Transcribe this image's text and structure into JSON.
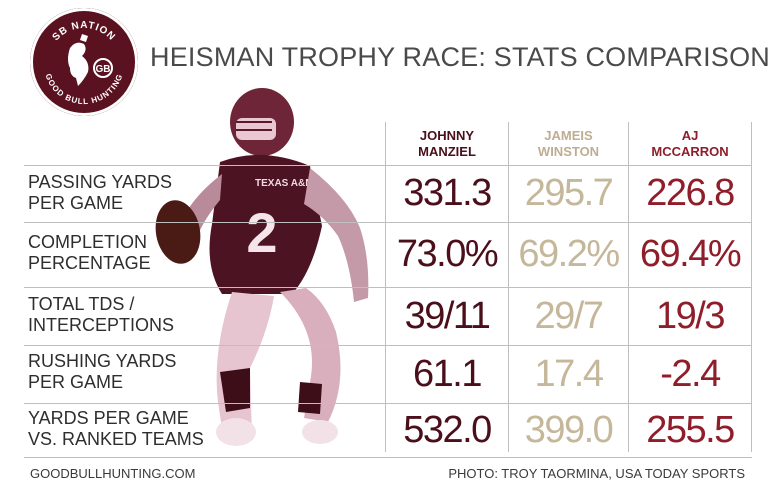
{
  "logo": {
    "top_text": "SB NATION",
    "bottom_text": "GOOD BULL HUNTING",
    "monogram": "GB"
  },
  "title": "HEISMAN TROPHY RACE: STATS COMPARISON",
  "players": [
    {
      "name_line1": "JOHNNY",
      "name_line2": "MANZIEL",
      "color": "#4a0f1a"
    },
    {
      "name_line1": "JAMEIS",
      "name_line2": "WINSTON",
      "color": "#c5b79a"
    },
    {
      "name_line1": "AJ",
      "name_line2": "MCCARRON",
      "color": "#8f1d2a"
    }
  ],
  "rows": [
    {
      "label_line1": "PASSING YARDS",
      "label_line2": "PER GAME",
      "values": [
        "331.3",
        "295.7",
        "226.8"
      ]
    },
    {
      "label_line1": "COMPLETION",
      "label_line2": "PERCENTAGE",
      "values": [
        "73.0%",
        "69.2%",
        "69.4%"
      ]
    },
    {
      "label_line1": "TOTAL TDS /",
      "label_line2": "INTERCEPTIONS",
      "values": [
        "39/11",
        "29/7",
        "19/3"
      ]
    },
    {
      "label_line1": "RUSHING YARDS",
      "label_line2": "PER GAME",
      "values": [
        "61.1",
        "17.4",
        "-2.4"
      ]
    },
    {
      "label_line1": "YARDS PER GAME",
      "label_line2": "VS. RANKED TEAMS",
      "values": [
        "532.0",
        "399.0",
        "255.5"
      ]
    }
  ],
  "player_jersey": {
    "wordmark": "TEXAS A&M",
    "number": "2"
  },
  "footer": {
    "left": "GOODBULLHUNTING.COM",
    "right": "PHOTO: TROY TAORMINA, USA TODAY SPORTS"
  },
  "chart_data": {
    "type": "table",
    "title": "HEISMAN TROPHY RACE: STATS COMPARISON",
    "columns": [
      "JOHNNY MANZIEL",
      "JAMEIS WINSTON",
      "AJ MCCARRON"
    ],
    "rows": [
      {
        "metric": "PASSING YARDS PER GAME",
        "values": [
          "331.3",
          "295.7",
          "226.8"
        ]
      },
      {
        "metric": "COMPLETION PERCENTAGE",
        "values": [
          "73.0%",
          "69.2%",
          "69.4%"
        ]
      },
      {
        "metric": "TOTAL TDS / INTERCEPTIONS",
        "values": [
          "39/11",
          "29/7",
          "19/3"
        ]
      },
      {
        "metric": "RUSHING YARDS PER GAME",
        "values": [
          "61.1",
          "17.4",
          "-2.4"
        ]
      },
      {
        "metric": "YARDS PER GAME VS. RANKED TEAMS",
        "values": [
          "532.0",
          "399.0",
          "255.5"
        ]
      }
    ],
    "colors": {
      "manziel": "#4a0f1a",
      "winston": "#c5b79a",
      "mccarron": "#8f1d2a"
    }
  }
}
